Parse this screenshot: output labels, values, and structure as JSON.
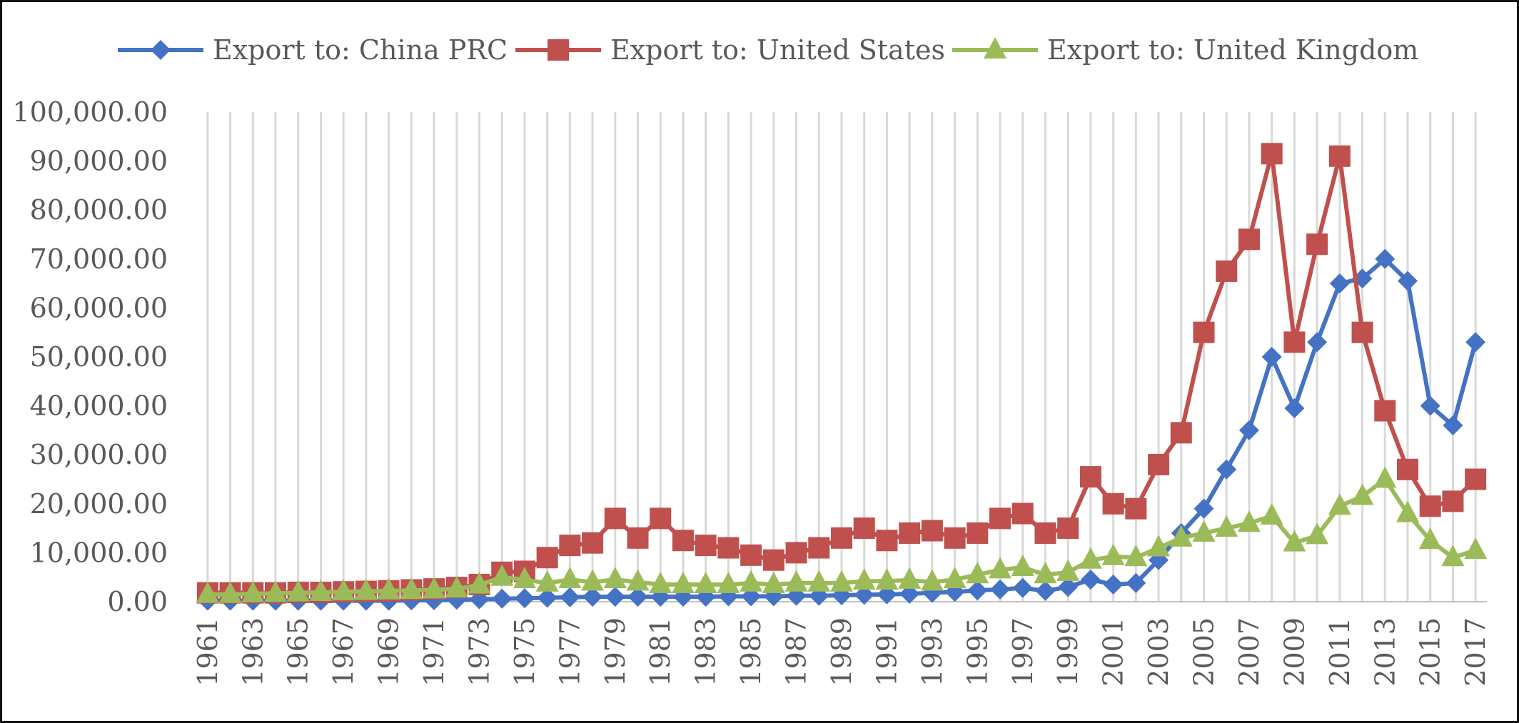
{
  "chart_data": {
    "type": "line",
    "title": "",
    "xlabel": "",
    "ylabel": "",
    "ylim": [
      0,
      100000
    ],
    "yticks": [
      "0.00",
      "10,000.00",
      "20,000.00",
      "30,000.00",
      "40,000.00",
      "50,000.00",
      "60,000.00",
      "70,000.00",
      "80,000.00",
      "90,000.00",
      "100,000.00"
    ],
    "ytick_values": [
      0,
      10000,
      20000,
      30000,
      40000,
      50000,
      60000,
      70000,
      80000,
      90000,
      100000
    ],
    "x": [
      1961,
      1962,
      1963,
      1964,
      1965,
      1966,
      1967,
      1968,
      1969,
      1970,
      1971,
      1972,
      1973,
      1974,
      1975,
      1976,
      1977,
      1978,
      1979,
      1980,
      1981,
      1982,
      1983,
      1984,
      1985,
      1986,
      1987,
      1988,
      1989,
      1990,
      1991,
      1992,
      1993,
      1994,
      1995,
      1996,
      1997,
      1998,
      1999,
      2000,
      2001,
      2002,
      2003,
      2004,
      2005,
      2006,
      2007,
      2008,
      2009,
      2010,
      2011,
      2012,
      2013,
      2014,
      2015,
      2016,
      2017
    ],
    "xtick_labels": [
      "1961",
      "1963",
      "1965",
      "1967",
      "1969",
      "1971",
      "1973",
      "1975",
      "1977",
      "1979",
      "1981",
      "1983",
      "1985",
      "1987",
      "1989",
      "1991",
      "1993",
      "1995",
      "1997",
      "1999",
      "2001",
      "2003",
      "2005",
      "2007",
      "2009",
      "2011",
      "2013",
      "2015",
      "2017"
    ],
    "grid": true,
    "legend_position": "top",
    "series": [
      {
        "name": "Export to: China PRC",
        "color": "#4472C4",
        "marker": "diamond",
        "start": 1961,
        "values": [
          200,
          200,
          200,
          200,
          200,
          200,
          200,
          200,
          200,
          250,
          300,
          400,
          500,
          600,
          700,
          800,
          900,
          1000,
          1000,
          1000,
          1000,
          1000,
          1000,
          1100,
          1100,
          1100,
          1200,
          1200,
          1300,
          1400,
          1500,
          1600,
          1800,
          2000,
          2300,
          2500,
          2800,
          2200,
          3000,
          4500,
          3500,
          3800,
          8500,
          14000,
          19000,
          27000,
          35000,
          50000,
          39500,
          53000,
          65000,
          66000,
          70000,
          65500,
          40000,
          36000,
          53000
        ]
      },
      {
        "name": "Export to: United States",
        "color": "#C0504D",
        "marker": "square",
        "start": 1961,
        "values": [
          1800,
          1800,
          1800,
          1800,
          1900,
          1900,
          2000,
          2100,
          2200,
          2400,
          2600,
          2900,
          3500,
          6000,
          6200,
          9000,
          11500,
          12000,
          17000,
          13000,
          17000,
          12500,
          11500,
          11000,
          9500,
          8500,
          10000,
          11000,
          13000,
          15000,
          12500,
          14000,
          14500,
          13000,
          14000,
          17000,
          18000,
          14000,
          15000,
          25500,
          20000,
          19000,
          28000,
          34500,
          55000,
          67500,
          74000,
          91500,
          53000,
          73000,
          91000,
          55000,
          39000,
          27000,
          19500,
          20500,
          25000
        ]
      },
      {
        "name": "Export to: United Kingdom",
        "color": "#9BBB59",
        "marker": "triangle",
        "start": 1961,
        "values": [
          1500,
          1500,
          1600,
          1700,
          1800,
          1900,
          2000,
          2100,
          2200,
          2300,
          2400,
          2600,
          3400,
          5000,
          4500,
          3800,
          4500,
          4000,
          4500,
          4000,
          3500,
          3500,
          3500,
          3500,
          3800,
          3500,
          3800,
          3800,
          3800,
          4200,
          4200,
          4400,
          4000,
          4500,
          5500,
          6500,
          7000,
          5500,
          6000,
          8500,
          9200,
          9000,
          11000,
          13000,
          14000,
          15000,
          16000,
          17500,
          12000,
          13500,
          19500,
          21500,
          25000,
          18000,
          12500,
          9000,
          10500
        ]
      }
    ]
  }
}
